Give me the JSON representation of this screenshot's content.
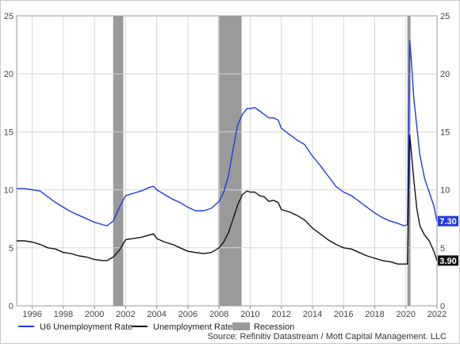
{
  "chart_data": {
    "type": "line",
    "x_range": [
      1995.0,
      2022.0
    ],
    "ylim": [
      0,
      25
    ],
    "y_ticks": [
      0,
      5,
      10,
      15,
      20,
      25
    ],
    "y_tick_labels": [
      "0",
      "5",
      "10",
      "15",
      "20",
      "25"
    ],
    "x_ticks": [
      1996,
      1998,
      2000,
      2002,
      2004,
      2006,
      2008,
      2010,
      2012,
      2014,
      2016,
      2018,
      2020,
      2022
    ],
    "x_tick_labels": [
      "1996",
      "1998",
      "2000",
      "2002",
      "2004",
      "2006",
      "2008",
      "2010",
      "2012",
      "2014",
      "2016",
      "2018",
      "2020",
      "2022"
    ],
    "grid": true,
    "legend_placement": "bottom",
    "source": "Source: Refinitiv Datastream / Mott Capital Management. LLC",
    "recessions": [
      {
        "start": 2001.2,
        "end": 2001.85
      },
      {
        "start": 2007.95,
        "end": 2009.45
      },
      {
        "start": 2020.1,
        "end": 2020.3
      }
    ],
    "series": [
      {
        "name": "U6 Unemployment Rate",
        "color": "#1f3be0",
        "end_label": "7.30",
        "x": [
          1995.0,
          1995.5,
          1996.0,
          1996.5,
          1997.0,
          1997.5,
          1998.0,
          1998.5,
          1999.0,
          1999.5,
          2000.0,
          2000.5,
          2000.8,
          2001.2,
          2001.6,
          2002.0,
          2002.5,
          2003.0,
          2003.5,
          2003.8,
          2004.0,
          2004.5,
          2005.0,
          2005.5,
          2006.0,
          2006.5,
          2007.0,
          2007.5,
          2008.0,
          2008.3,
          2008.6,
          2008.9,
          2009.2,
          2009.5,
          2009.8,
          2010.0,
          2010.3,
          2010.6,
          2010.9,
          2011.2,
          2011.5,
          2011.8,
          2012.0,
          2012.5,
          2013.0,
          2013.5,
          2014.0,
          2014.5,
          2015.0,
          2015.5,
          2016.0,
          2016.5,
          2017.0,
          2017.5,
          2018.0,
          2018.5,
          2019.0,
          2019.5,
          2019.9,
          2020.1,
          2020.25,
          2020.35,
          2020.5,
          2020.7,
          2020.9,
          2021.2,
          2021.5,
          2021.8,
          2022.0
        ],
        "values": [
          10.1,
          10.1,
          10.0,
          9.9,
          9.4,
          8.9,
          8.5,
          8.1,
          7.8,
          7.5,
          7.2,
          7.0,
          6.9,
          7.3,
          8.5,
          9.5,
          9.7,
          9.9,
          10.2,
          10.3,
          10.0,
          9.6,
          9.2,
          8.9,
          8.5,
          8.2,
          8.2,
          8.4,
          9.0,
          9.8,
          11.2,
          13.5,
          15.6,
          16.5,
          17.0,
          17.0,
          17.1,
          16.8,
          16.5,
          16.2,
          16.2,
          16.0,
          15.3,
          14.8,
          14.3,
          13.9,
          12.9,
          12.1,
          11.2,
          10.3,
          9.8,
          9.5,
          9.0,
          8.5,
          8.0,
          7.6,
          7.3,
          7.1,
          6.9,
          7.0,
          22.9,
          21.2,
          18.0,
          15.5,
          13.0,
          11.0,
          9.8,
          8.6,
          7.3
        ]
      },
      {
        "name": "Unemployment Rate",
        "color": "#111111",
        "end_label": "3.90",
        "x": [
          1995.0,
          1995.5,
          1996.0,
          1996.5,
          1997.0,
          1997.5,
          1998.0,
          1998.5,
          1999.0,
          1999.5,
          2000.0,
          2000.5,
          2000.8,
          2001.2,
          2001.6,
          2002.0,
          2002.5,
          2003.0,
          2003.5,
          2003.8,
          2004.0,
          2004.5,
          2005.0,
          2005.5,
          2006.0,
          2006.5,
          2007.0,
          2007.5,
          2008.0,
          2008.3,
          2008.6,
          2008.9,
          2009.2,
          2009.5,
          2009.8,
          2010.0,
          2010.3,
          2010.6,
          2010.9,
          2011.2,
          2011.5,
          2011.8,
          2012.0,
          2012.5,
          2013.0,
          2013.5,
          2014.0,
          2014.5,
          2015.0,
          2015.5,
          2016.0,
          2016.5,
          2017.0,
          2017.5,
          2018.0,
          2018.5,
          2019.0,
          2019.5,
          2019.9,
          2020.1,
          2020.25,
          2020.35,
          2020.5,
          2020.7,
          2020.9,
          2021.2,
          2021.5,
          2021.8,
          2022.0
        ],
        "values": [
          5.6,
          5.6,
          5.5,
          5.3,
          5.0,
          4.9,
          4.6,
          4.5,
          4.3,
          4.2,
          4.0,
          3.9,
          3.9,
          4.2,
          4.8,
          5.7,
          5.8,
          5.9,
          6.1,
          6.2,
          5.8,
          5.5,
          5.3,
          5.0,
          4.7,
          4.6,
          4.5,
          4.6,
          5.0,
          5.5,
          6.3,
          7.5,
          8.7,
          9.6,
          9.9,
          9.8,
          9.8,
          9.5,
          9.4,
          9.0,
          9.1,
          8.9,
          8.3,
          8.1,
          7.8,
          7.4,
          6.7,
          6.2,
          5.7,
          5.3,
          5.0,
          4.9,
          4.6,
          4.3,
          4.1,
          3.9,
          3.8,
          3.6,
          3.6,
          3.6,
          14.7,
          13.3,
          11.0,
          8.4,
          6.9,
          6.1,
          5.6,
          4.7,
          3.9
        ]
      }
    ],
    "legend": [
      {
        "label": "U6 Unemployment Rate",
        "kind": "line",
        "color": "#1f3be0"
      },
      {
        "label": "Unemployment Rate",
        "kind": "line",
        "color": "#111111"
      },
      {
        "label": "Recession",
        "kind": "box",
        "color": "#9a9a9a"
      }
    ]
  }
}
